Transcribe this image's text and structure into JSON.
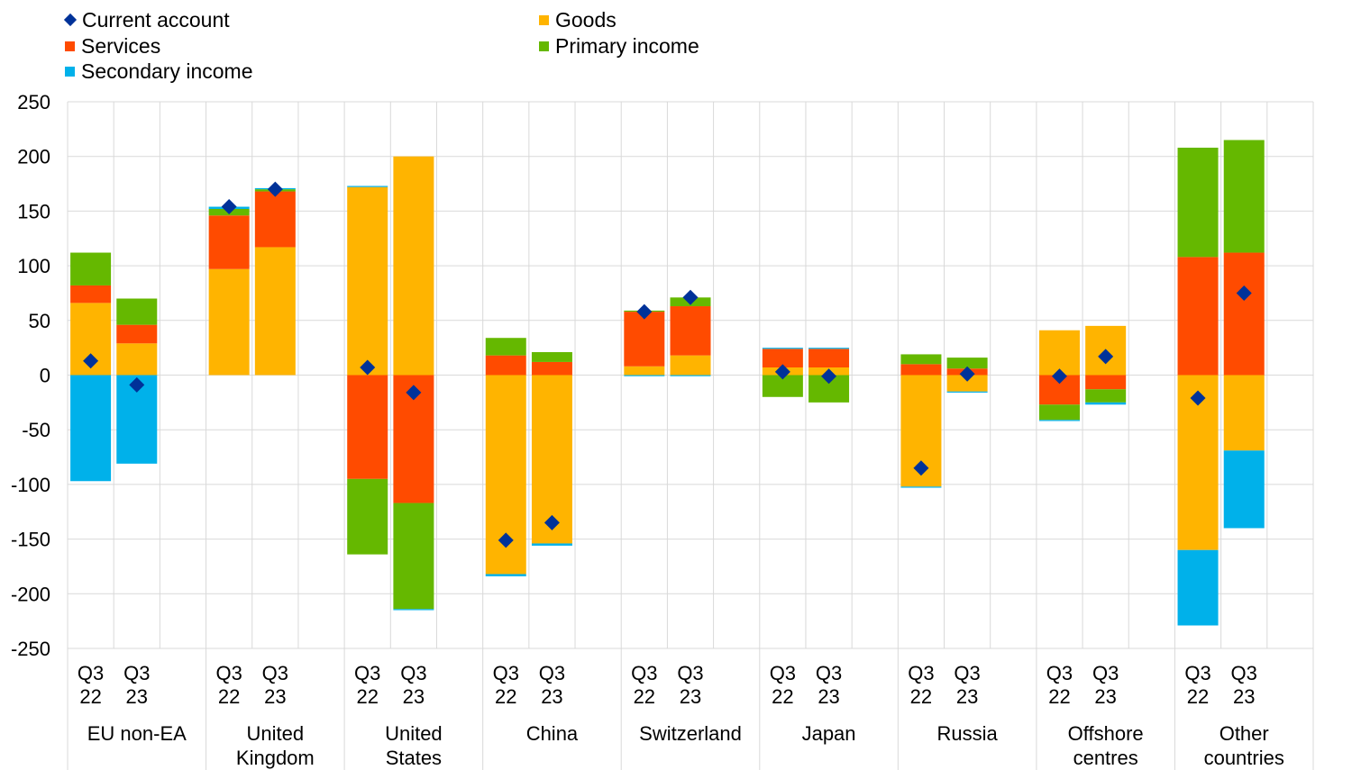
{
  "chart_data": {
    "type": "bar",
    "stacked": true,
    "ylim": [
      -250,
      250
    ],
    "yticks": [
      250,
      200,
      150,
      100,
      50,
      0,
      -50,
      -100,
      -150,
      -200,
      -250
    ],
    "grid": true,
    "legend_position": "top-left",
    "groups": [
      {
        "name": "EU non-EA",
        "lines": [
          "EU non-EA"
        ]
      },
      {
        "name": "United Kingdom",
        "lines": [
          "United",
          "Kingdom"
        ]
      },
      {
        "name": "United States",
        "lines": [
          "United",
          "States"
        ]
      },
      {
        "name": "China",
        "lines": [
          "China"
        ]
      },
      {
        "name": "Switzerland",
        "lines": [
          "Switzerland"
        ]
      },
      {
        "name": "Japan",
        "lines": [
          "Japan"
        ]
      },
      {
        "name": "Russia",
        "lines": [
          "Russia"
        ]
      },
      {
        "name": "Offshore centres",
        "lines": [
          "Offshore",
          "centres"
        ]
      },
      {
        "name": "Other countries",
        "lines": [
          "Other",
          "countries"
        ]
      }
    ],
    "periods": [
      [
        "Q3",
        "22"
      ],
      [
        "Q3",
        "23"
      ]
    ],
    "series": [
      {
        "name": "Goods",
        "color": "#FFB400",
        "values": [
          66,
          29,
          97,
          117,
          172,
          200,
          -182,
          -154,
          8,
          18,
          7,
          7,
          -102,
          -15,
          41,
          45,
          -160,
          -69
        ]
      },
      {
        "name": "Services",
        "color": "#FF4B00",
        "values": [
          16,
          17,
          49,
          51,
          -95,
          -117,
          18,
          12,
          50,
          45,
          17,
          17,
          10,
          6,
          -27,
          -13,
          108,
          112
        ]
      },
      {
        "name": "Primary income",
        "color": "#65B800",
        "values": [
          30,
          24,
          6,
          2,
          -69,
          -97,
          16,
          9,
          1,
          8,
          -20,
          -25,
          9,
          10,
          -14,
          -12,
          100,
          103
        ]
      },
      {
        "name": "Secondary income",
        "color": "#00B1EA",
        "values": [
          -97,
          -81,
          2,
          1,
          1,
          -1,
          -2,
          -2,
          -1,
          -1,
          1,
          1,
          -1,
          -1,
          -1,
          -2,
          -69,
          -71
        ]
      }
    ],
    "current_account": {
      "name": "Current account",
      "color": "#003299",
      "values": [
        13,
        -9,
        154,
        170,
        7,
        -16,
        -151,
        -135,
        58,
        71,
        3,
        -1,
        -85,
        1,
        -1,
        17,
        -21,
        75
      ]
    }
  }
}
